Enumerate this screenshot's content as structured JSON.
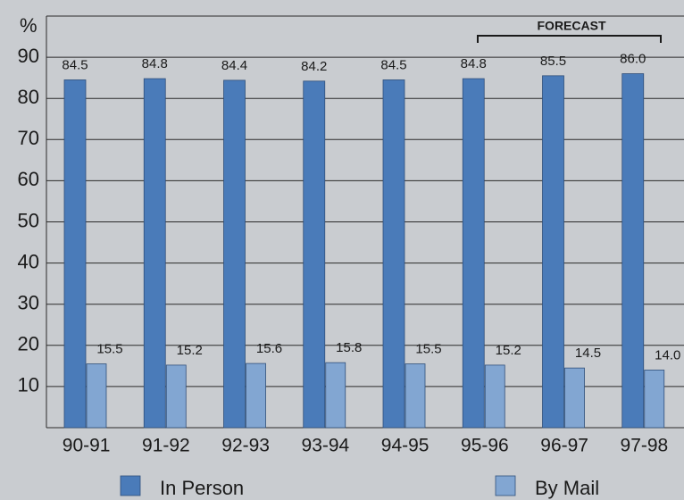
{
  "chart_data": {
    "type": "bar",
    "y_axis_label": "%",
    "annotation": "FORECAST",
    "categories": [
      "90-91",
      "91-92",
      "92-93",
      "93-94",
      "94-95",
      "95-96",
      "96-97",
      "97-98"
    ],
    "series": [
      {
        "name": "In Person",
        "color": "#4a7bb9",
        "values": [
          84.5,
          84.8,
          84.4,
          84.2,
          84.5,
          84.8,
          85.5,
          86.0
        ],
        "value_labels": [
          "84.5",
          "84.8",
          "84.4",
          "84.2",
          "84.5",
          "84.8",
          "85.5",
          "86.0"
        ]
      },
      {
        "name": "By Mail",
        "color": "#82a6d2",
        "values": [
          15.5,
          15.2,
          15.6,
          15.8,
          15.5,
          15.2,
          14.5,
          14.0
        ],
        "value_labels": [
          "15.5",
          "15.2",
          "15.6",
          "15.8",
          "15.5",
          "15.2",
          "14.5",
          "14.0"
        ]
      }
    ],
    "ylim": [
      0,
      100
    ],
    "yticks": [
      10,
      20,
      30,
      40,
      50,
      60,
      70,
      80,
      90
    ],
    "grid": true
  }
}
